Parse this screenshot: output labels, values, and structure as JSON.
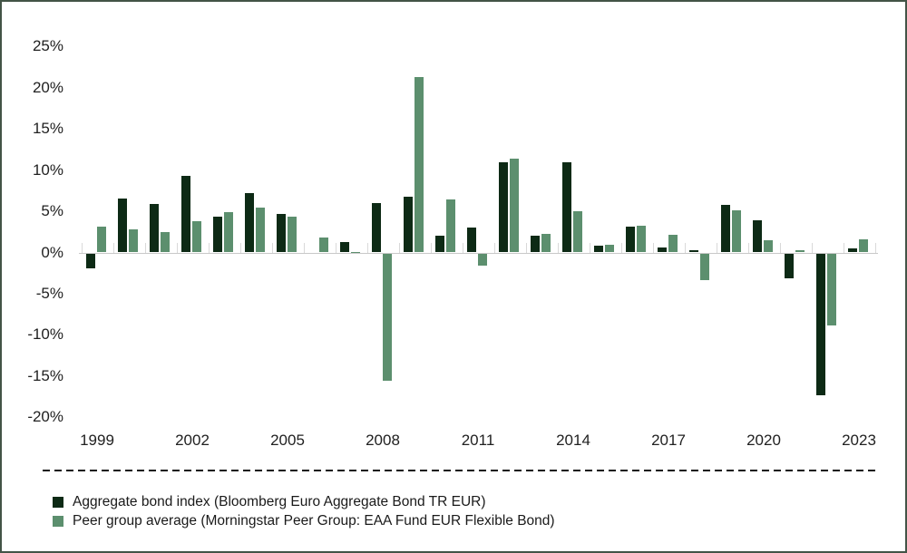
{
  "chart_data": {
    "type": "bar",
    "categories": [
      1999,
      2000,
      2001,
      2002,
      2003,
      2004,
      2005,
      2006,
      2007,
      2008,
      2009,
      2010,
      2011,
      2012,
      2013,
      2014,
      2015,
      2016,
      2017,
      2018,
      2019,
      2020,
      2021,
      2022,
      2023
    ],
    "series": [
      {
        "name": "Aggregate bond index (Bloomberg Euro Aggregate Bond TR EUR)",
        "color": "#0d2a15",
        "values": [
          -1.8,
          6.6,
          5.9,
          9.3,
          4.4,
          7.2,
          4.7,
          0.0,
          1.3,
          6.0,
          6.8,
          2.0,
          3.0,
          11.0,
          2.0,
          11.0,
          0.8,
          3.1,
          0.6,
          0.3,
          5.8,
          3.9,
          -3.0,
          -17.2,
          0.5
        ]
      },
      {
        "name": "Peer group average (Morningstar Peer Group: EAA Fund EUR Flexible Bond)",
        "color": "#5c8f6e",
        "values": [
          3.1,
          2.8,
          2.5,
          3.8,
          4.9,
          5.5,
          4.3,
          1.8,
          0.1,
          -15.5,
          21.3,
          6.4,
          -1.5,
          11.4,
          2.3,
          5.0,
          0.9,
          3.3,
          2.1,
          -3.3,
          5.1,
          1.5,
          0.3,
          -8.7,
          1.6
        ]
      }
    ],
    "y_ticks": [
      25,
      20,
      15,
      10,
      5,
      0,
      -5,
      -10,
      -15,
      -20
    ],
    "y_tick_suffix": "%",
    "x_tick_labels": [
      "1999",
      "2002",
      "2005",
      "2008",
      "2011",
      "2014",
      "2017",
      "2020",
      "2023"
    ],
    "x_tick_year_step": 3,
    "ylim": [
      -20.5,
      28
    ],
    "grid": false,
    "legend_position": "bottom-left",
    "title": "",
    "xlabel": "",
    "ylabel": ""
  },
  "colors": {
    "frame_border": "#435447",
    "axis_line": "#c8c8c8",
    "tick": "#d9d9d9",
    "text": "#212121",
    "separator": "#161616"
  }
}
